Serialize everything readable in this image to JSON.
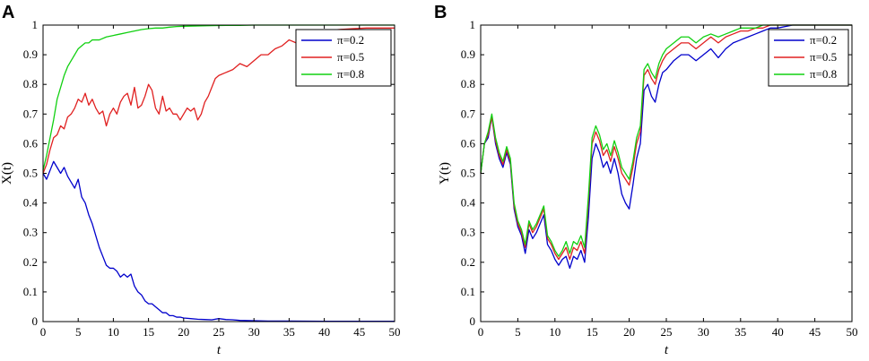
{
  "chart_data": [
    {
      "panel_label": "A",
      "type": "line",
      "xlabel": "t",
      "ylabel": "X(t)",
      "xlim": [
        0,
        50
      ],
      "ylim": [
        0,
        1
      ],
      "xticks": [
        0,
        5,
        10,
        15,
        20,
        25,
        30,
        35,
        40,
        45,
        50
      ],
      "yticks": [
        0,
        0.1,
        0.2,
        0.3,
        0.4,
        0.5,
        0.6,
        0.7,
        0.8,
        0.9,
        1
      ],
      "grid": false,
      "legend_position": "top-right",
      "series": [
        {
          "name": "π=0.2",
          "color": "#0000cc",
          "x": [
            0,
            0.5,
            1,
            1.5,
            2,
            2.5,
            3,
            3.5,
            4,
            4.5,
            5,
            5.5,
            6,
            6.5,
            7,
            7.5,
            8,
            8.5,
            9,
            9.5,
            10,
            10.5,
            11,
            11.5,
            12,
            12.5,
            13,
            13.5,
            14,
            14.5,
            15,
            15.5,
            16,
            16.5,
            17,
            17.5,
            18,
            18.5,
            19,
            19.5,
            20,
            21,
            22,
            23,
            24,
            25,
            26,
            27,
            28,
            30,
            32,
            35,
            40,
            45,
            50
          ],
          "y": [
            0.5,
            0.48,
            0.51,
            0.54,
            0.52,
            0.5,
            0.52,
            0.49,
            0.47,
            0.45,
            0.48,
            0.42,
            0.4,
            0.36,
            0.33,
            0.29,
            0.25,
            0.22,
            0.19,
            0.18,
            0.18,
            0.17,
            0.15,
            0.16,
            0.15,
            0.16,
            0.12,
            0.1,
            0.09,
            0.07,
            0.06,
            0.06,
            0.05,
            0.04,
            0.03,
            0.03,
            0.02,
            0.02,
            0.015,
            0.015,
            0.012,
            0.01,
            0.008,
            0.007,
            0.006,
            0.01,
            0.007,
            0.006,
            0.004,
            0.003,
            0.002,
            0.002,
            0.001,
            0.001,
            0.001
          ]
        },
        {
          "name": "π=0.5",
          "color": "#e02020",
          "x": [
            0,
            0.5,
            1,
            1.5,
            2,
            2.5,
            3,
            3.5,
            4,
            4.5,
            5,
            5.5,
            6,
            6.5,
            7,
            7.5,
            8,
            8.5,
            9,
            9.5,
            10,
            10.5,
            11,
            11.5,
            12,
            12.5,
            13,
            13.5,
            14,
            14.5,
            15,
            15.5,
            16,
            16.5,
            17,
            17.5,
            18,
            18.5,
            19,
            19.5,
            20,
            20.5,
            21,
            21.5,
            22,
            22.5,
            23,
            23.5,
            24,
            24.5,
            25,
            26,
            27,
            28,
            29,
            30,
            31,
            32,
            33,
            34,
            35,
            36,
            37,
            38,
            39,
            40,
            42,
            44,
            46,
            48,
            50
          ],
          "y": [
            0.5,
            0.53,
            0.58,
            0.62,
            0.63,
            0.66,
            0.65,
            0.69,
            0.7,
            0.72,
            0.75,
            0.74,
            0.77,
            0.73,
            0.75,
            0.72,
            0.7,
            0.71,
            0.66,
            0.7,
            0.72,
            0.7,
            0.74,
            0.76,
            0.77,
            0.73,
            0.79,
            0.72,
            0.73,
            0.76,
            0.8,
            0.78,
            0.72,
            0.7,
            0.76,
            0.71,
            0.72,
            0.7,
            0.7,
            0.68,
            0.7,
            0.72,
            0.71,
            0.72,
            0.68,
            0.7,
            0.74,
            0.76,
            0.79,
            0.82,
            0.83,
            0.84,
            0.85,
            0.87,
            0.86,
            0.88,
            0.9,
            0.9,
            0.92,
            0.93,
            0.95,
            0.94,
            0.96,
            0.97,
            0.97,
            0.98,
            0.985,
            0.988,
            0.99,
            0.99,
            0.99
          ]
        },
        {
          "name": "π=0.8",
          "color": "#11d011",
          "x": [
            0,
            0.5,
            1,
            1.5,
            2,
            2.5,
            3,
            3.5,
            4,
            4.5,
            5,
            5.5,
            6,
            6.5,
            7,
            8,
            9,
            10,
            11,
            12,
            13,
            14,
            15,
            16,
            17,
            18,
            19,
            20,
            22,
            24,
            26,
            28,
            30,
            35,
            40,
            45,
            50
          ],
          "y": [
            0.51,
            0.56,
            0.62,
            0.68,
            0.75,
            0.79,
            0.83,
            0.86,
            0.88,
            0.9,
            0.92,
            0.93,
            0.94,
            0.94,
            0.95,
            0.95,
            0.96,
            0.965,
            0.97,
            0.975,
            0.98,
            0.985,
            0.988,
            0.99,
            0.99,
            0.993,
            0.995,
            0.996,
            0.997,
            0.998,
            0.999,
            0.999,
            1.0,
            1.0,
            1.0,
            1.0,
            1.0
          ]
        }
      ]
    },
    {
      "panel_label": "B",
      "type": "line",
      "xlabel": "t",
      "ylabel": "Y(t)",
      "xlim": [
        0,
        50
      ],
      "ylim": [
        0,
        1
      ],
      "xticks": [
        0,
        5,
        10,
        15,
        20,
        25,
        30,
        35,
        40,
        45,
        50
      ],
      "yticks": [
        0,
        0.1,
        0.2,
        0.3,
        0.4,
        0.5,
        0.6,
        0.7,
        0.8,
        0.9,
        1
      ],
      "grid": false,
      "legend_position": "top-right",
      "series": [
        {
          "name": "π=0.2",
          "color": "#0000cc",
          "x": [
            0,
            0.5,
            1,
            1.5,
            2,
            2.5,
            3,
            3.5,
            4,
            4.5,
            5,
            5.5,
            6,
            6.5,
            7,
            7.5,
            8,
            8.5,
            9,
            9.5,
            10,
            10.5,
            11,
            11.5,
            12,
            12.5,
            13,
            13.5,
            14,
            14.5,
            15,
            15.5,
            16,
            16.5,
            17,
            17.5,
            18,
            18.5,
            19,
            19.5,
            20,
            20.5,
            21,
            21.5,
            22,
            22.5,
            23,
            23.5,
            24,
            24.5,
            25,
            26,
            27,
            28,
            29,
            30,
            31,
            32,
            33,
            34,
            35,
            36,
            37,
            38,
            39,
            40,
            42,
            44,
            46,
            48,
            50
          ],
          "y": [
            0.5,
            0.6,
            0.62,
            0.69,
            0.6,
            0.55,
            0.52,
            0.57,
            0.53,
            0.38,
            0.32,
            0.29,
            0.23,
            0.31,
            0.28,
            0.3,
            0.33,
            0.36,
            0.26,
            0.24,
            0.21,
            0.19,
            0.21,
            0.22,
            0.18,
            0.22,
            0.21,
            0.24,
            0.2,
            0.35,
            0.55,
            0.6,
            0.57,
            0.52,
            0.54,
            0.5,
            0.55,
            0.5,
            0.43,
            0.4,
            0.38,
            0.46,
            0.55,
            0.6,
            0.78,
            0.8,
            0.76,
            0.74,
            0.8,
            0.84,
            0.85,
            0.88,
            0.9,
            0.9,
            0.88,
            0.9,
            0.92,
            0.89,
            0.92,
            0.94,
            0.95,
            0.96,
            0.97,
            0.98,
            0.99,
            0.99,
            1.0,
            1.0,
            1.0,
            1.0,
            1.0
          ]
        },
        {
          "name": "π=0.5",
          "color": "#e02020",
          "x": [
            0,
            0.5,
            1,
            1.5,
            2,
            2.5,
            3,
            3.5,
            4,
            4.5,
            5,
            5.5,
            6,
            6.5,
            7,
            7.5,
            8,
            8.5,
            9,
            9.5,
            10,
            10.5,
            11,
            11.5,
            12,
            12.5,
            13,
            13.5,
            14,
            14.5,
            15,
            15.5,
            16,
            16.5,
            17,
            17.5,
            18,
            18.5,
            19,
            19.5,
            20,
            20.5,
            21,
            21.5,
            22,
            22.5,
            23,
            23.5,
            24,
            24.5,
            25,
            26,
            27,
            28,
            29,
            30,
            31,
            32,
            33,
            34,
            35,
            36,
            37,
            38,
            39,
            40,
            42,
            44,
            46,
            48,
            50
          ],
          "y": [
            0.5,
            0.6,
            0.63,
            0.69,
            0.61,
            0.56,
            0.53,
            0.58,
            0.54,
            0.39,
            0.33,
            0.3,
            0.25,
            0.33,
            0.3,
            0.32,
            0.35,
            0.38,
            0.28,
            0.26,
            0.23,
            0.21,
            0.23,
            0.25,
            0.21,
            0.25,
            0.24,
            0.27,
            0.23,
            0.4,
            0.6,
            0.64,
            0.61,
            0.56,
            0.58,
            0.54,
            0.59,
            0.55,
            0.5,
            0.48,
            0.46,
            0.52,
            0.6,
            0.64,
            0.83,
            0.85,
            0.82,
            0.8,
            0.85,
            0.88,
            0.9,
            0.92,
            0.94,
            0.94,
            0.92,
            0.94,
            0.96,
            0.94,
            0.96,
            0.97,
            0.98,
            0.98,
            0.99,
            0.99,
            1.0,
            1.0,
            1.0,
            1.0,
            1.0,
            1.0,
            1.0
          ]
        },
        {
          "name": "π=0.8",
          "color": "#11d011",
          "x": [
            0,
            0.5,
            1,
            1.5,
            2,
            2.5,
            3,
            3.5,
            4,
            4.5,
            5,
            5.5,
            6,
            6.5,
            7,
            7.5,
            8,
            8.5,
            9,
            9.5,
            10,
            10.5,
            11,
            11.5,
            12,
            12.5,
            13,
            13.5,
            14,
            14.5,
            15,
            15.5,
            16,
            16.5,
            17,
            17.5,
            18,
            18.5,
            19,
            19.5,
            20,
            20.5,
            21,
            21.5,
            22,
            22.5,
            23,
            23.5,
            24,
            24.5,
            25,
            26,
            27,
            28,
            29,
            30,
            31,
            32,
            33,
            34,
            35,
            36,
            37,
            38,
            39,
            40,
            42,
            44,
            46,
            48,
            50
          ],
          "y": [
            0.5,
            0.6,
            0.64,
            0.7,
            0.62,
            0.57,
            0.54,
            0.59,
            0.55,
            0.4,
            0.34,
            0.31,
            0.26,
            0.34,
            0.31,
            0.33,
            0.36,
            0.39,
            0.29,
            0.27,
            0.24,
            0.22,
            0.24,
            0.27,
            0.23,
            0.27,
            0.26,
            0.29,
            0.25,
            0.42,
            0.62,
            0.66,
            0.63,
            0.58,
            0.6,
            0.56,
            0.61,
            0.57,
            0.52,
            0.5,
            0.48,
            0.54,
            0.62,
            0.66,
            0.85,
            0.87,
            0.84,
            0.82,
            0.87,
            0.9,
            0.92,
            0.94,
            0.96,
            0.96,
            0.94,
            0.96,
            0.97,
            0.96,
            0.97,
            0.98,
            0.99,
            0.99,
            0.99,
            1.0,
            1.0,
            1.0,
            1.0,
            1.0,
            1.0,
            1.0,
            1.0
          ]
        }
      ]
    }
  ]
}
